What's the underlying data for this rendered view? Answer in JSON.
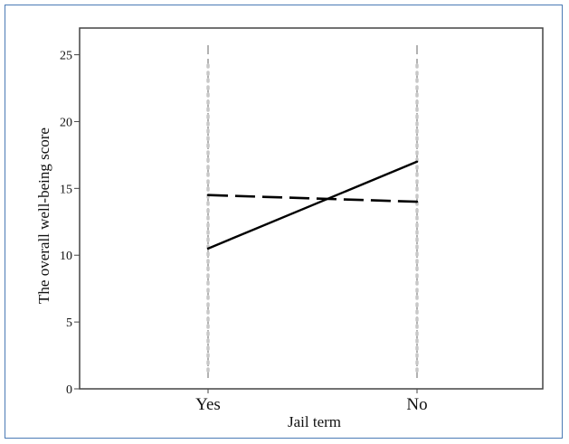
{
  "chart_data": {
    "type": "line",
    "categories": [
      "Yes",
      "No"
    ],
    "series": [
      {
        "style": "solid",
        "values": [
          10.5,
          17.0
        ]
      },
      {
        "style": "dashed",
        "values": [
          14.5,
          14.0
        ]
      }
    ],
    "xlabel": "Jail term",
    "ylabel": "The overall well-being score",
    "ylim": [
      0,
      27
    ],
    "yticks": [
      0,
      5,
      10,
      15,
      20,
      25
    ],
    "grid": false,
    "colors": {
      "line": "#000000",
      "axis": "#444444",
      "frame": "#4a7ab5",
      "guide": "#666666",
      "dots": "#c8c8c8"
    }
  }
}
